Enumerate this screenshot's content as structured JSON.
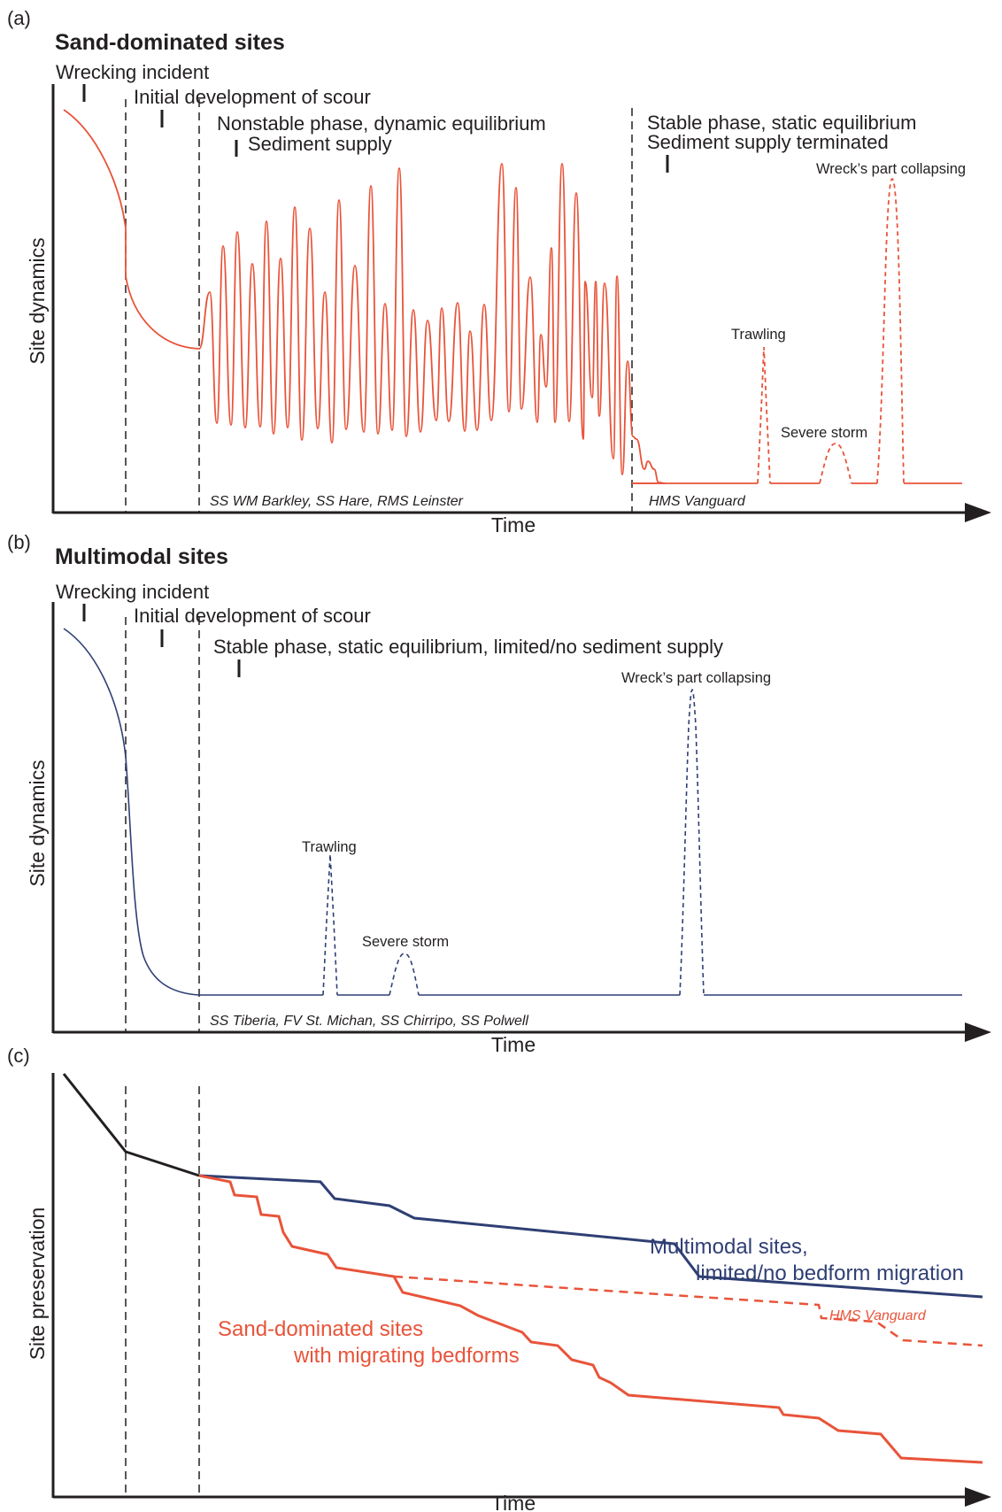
{
  "colors": {
    "sand": "#e8543a",
    "multi": "#2f3f74",
    "ink": "#231f20"
  },
  "panel_a": {
    "letter": "(a)",
    "title": "Sand-dominated sites",
    "y_axis": "Site dynamics",
    "x_axis": "Time",
    "events": {
      "wrecking": "Wrecking incident",
      "scour": "Initial development of scour",
      "nonstable": "Nonstable phase, dynamic equilibrium",
      "supply": "Sediment supply",
      "stable": "Stable phase, static equilibrium",
      "terminated": "Sediment supply terminated",
      "collapse": "Wreck’s part collapsing",
      "trawling": "Trawling",
      "storm": "Severe storm"
    },
    "examples_left": "SS WM Barkley, SS Hare, RMS Leinster",
    "examples_right": "HMS Vanguard"
  },
  "panel_b": {
    "letter": "(b)",
    "title": "Multimodal sites",
    "y_axis": "Site dynamics",
    "x_axis": "Time",
    "events": {
      "wrecking": "Wrecking incident",
      "scour": "Initial development of scour",
      "stable": "Stable phase, static equilibrium, limited/no sediment supply",
      "collapse": "Wreck’s part collapsing",
      "trawling": "Trawling",
      "storm": "Severe storm"
    },
    "examples": "SS Tiberia, FV St. Michan, SS Chirripo, SS Polwell"
  },
  "panel_c": {
    "letter": "(c)",
    "y_axis": "Site preservation",
    "x_axis": "Time",
    "multi_label_1": "Multimodal sites,",
    "multi_label_2": "limited/no bedform migration",
    "sand_label_1": "Sand-dominated sites",
    "sand_label_2": "with migrating bedforms",
    "vanguard": "HMS Vanguard"
  }
}
